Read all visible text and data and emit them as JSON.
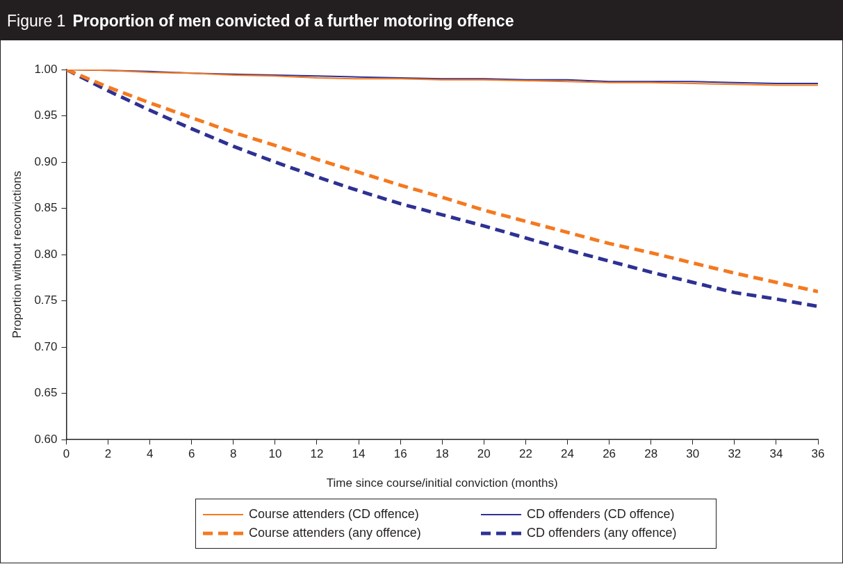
{
  "chart_data": {
    "type": "line",
    "title": "Proportion of men convicted of a further motoring offence",
    "annotations": [
      "Figure 1"
    ],
    "xlabel": "Time since course/initial conviction (months)",
    "ylabel": "Proportion without reconvictions",
    "x": [
      0,
      2,
      4,
      6,
      8,
      10,
      12,
      14,
      16,
      18,
      20,
      22,
      24,
      26,
      28,
      30,
      32,
      34,
      36
    ],
    "xlim": [
      0,
      36
    ],
    "xticks": [
      0,
      2,
      4,
      6,
      8,
      10,
      12,
      14,
      16,
      18,
      20,
      22,
      24,
      26,
      28,
      30,
      32,
      34,
      36
    ],
    "ylim": [
      0.6,
      1.0
    ],
    "yticks": [
      {
        "value": 0.6,
        "label": "0.60"
      },
      {
        "value": 0.65,
        "label": "0.65"
      },
      {
        "value": 0.7,
        "label": "0.70"
      },
      {
        "value": 0.75,
        "label": "0.75"
      },
      {
        "value": 0.8,
        "label": "0.80"
      },
      {
        "value": 0.85,
        "label": "0.85"
      },
      {
        "value": 0.9,
        "label": "0.90"
      },
      {
        "value": 0.95,
        "label": "0.95"
      },
      {
        "value": 1.0,
        "label": "1.00"
      }
    ],
    "grid": false,
    "legend": "bottom",
    "marker": "none",
    "series": [
      {
        "name": "Course attenders (CD offence)",
        "color": "#f47920",
        "line_style": "solid",
        "values": [
          1.0,
          0.999,
          0.997,
          0.996,
          0.994,
          0.993,
          0.991,
          0.99,
          0.99,
          0.989,
          0.989,
          0.988,
          0.987,
          0.986,
          0.986,
          0.985,
          0.984,
          0.983,
          0.983
        ]
      },
      {
        "name": "CD offenders (CD offence)",
        "color": "#2e3192",
        "line_style": "solid",
        "values": [
          1.0,
          0.999,
          0.998,
          0.996,
          0.995,
          0.994,
          0.993,
          0.992,
          0.991,
          0.99,
          0.99,
          0.989,
          0.989,
          0.987,
          0.987,
          0.987,
          0.986,
          0.985,
          0.985
        ]
      },
      {
        "name": "Course attenders (any offence)",
        "color": "#f47920",
        "line_style": "dashed",
        "values": [
          1.0,
          0.981,
          0.964,
          0.948,
          0.932,
          0.918,
          0.903,
          0.889,
          0.875,
          0.862,
          0.848,
          0.836,
          0.824,
          0.812,
          0.802,
          0.791,
          0.78,
          0.77,
          0.76
        ]
      },
      {
        "name": "CD offenders (any offence)",
        "color": "#2e3192",
        "line_style": "dashed",
        "values": [
          1.0,
          0.977,
          0.956,
          0.936,
          0.917,
          0.9,
          0.884,
          0.869,
          0.855,
          0.843,
          0.831,
          0.818,
          0.805,
          0.793,
          0.781,
          0.77,
          0.759,
          0.752,
          0.744
        ]
      }
    ]
  }
}
